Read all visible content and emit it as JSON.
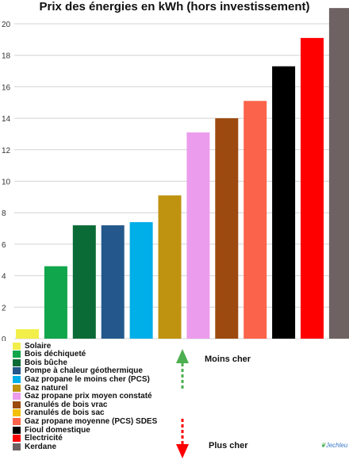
{
  "chart_data": {
    "type": "bar",
    "title": "Prix des énergies en kWh (hors investissement)",
    "ylim": [
      0,
      20
    ],
    "yticks": [
      0,
      2,
      4,
      6,
      8,
      10,
      12,
      14,
      16,
      18,
      20
    ],
    "grid": true,
    "legend_position": "bottom-left",
    "categories": [
      "Solaire",
      "Bois déchiqueté",
      "Bois bûche",
      "Pompe à chaleur géothermique",
      "Gaz propane le moins cher (PCS)",
      "Gaz naturel",
      "Gaz propane prix moyen constaté",
      "Granulés de bois vrac",
      "Granulés de bois sac",
      "Gaz propane moyenne (PCS) SDES",
      "Fioul domestique",
      "Electricité",
      "Kerdane"
    ],
    "values": [
      0.6,
      4.6,
      7.2,
      7.2,
      7.4,
      9.1,
      13.1,
      14.0,
      null,
      15.1,
      17.3,
      19.1,
      21.0
    ],
    "colors": [
      "#f2ee4a",
      "#10a64c",
      "#0b6b36",
      "#24588c",
      "#00aee8",
      "#bf9210",
      "#ec9cec",
      "#9c4a10",
      "#f2c00a",
      "#fb634a",
      "#000000",
      "#ff0000",
      "#6e6262"
    ]
  },
  "annotations": {
    "cheaper_label": "Moins cher",
    "pricier_label": "Plus cher",
    "cheaper_arrow_color": "#4caf50",
    "pricier_arrow_color": "#ff0000"
  },
  "logo": {
    "text": "Jechleu",
    "icon": "leaf-icon"
  }
}
